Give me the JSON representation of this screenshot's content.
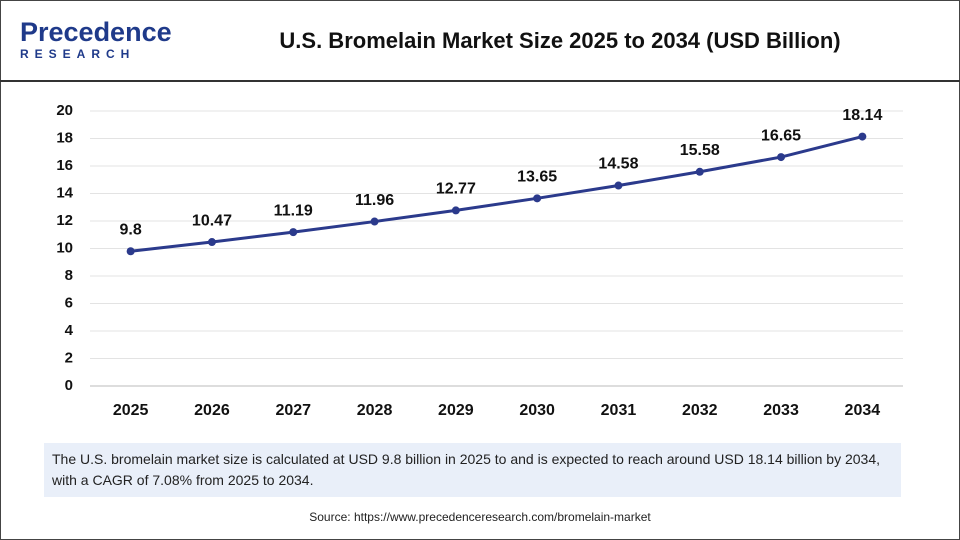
{
  "logo": {
    "name": "Precedence",
    "tagline": "RESEARCH"
  },
  "chart_data": {
    "type": "line",
    "title": "U.S. Bromelain Market Size 2025 to 2034 (USD Billion)",
    "categories": [
      "2025",
      "2026",
      "2027",
      "2028",
      "2029",
      "2030",
      "2031",
      "2032",
      "2033",
      "2034"
    ],
    "values": [
      9.8,
      10.47,
      11.19,
      11.96,
      12.77,
      13.65,
      14.58,
      15.58,
      16.65,
      18.14
    ],
    "color": "#2b3a8c",
    "ylim": [
      0,
      20
    ],
    "yticks": [
      0,
      2,
      4,
      6,
      8,
      10,
      12,
      14,
      16,
      18,
      20
    ],
    "grid": true
  },
  "description": "The U.S. bromelain market size is calculated at USD 9.8 billion in 2025 to and is expected to reach around USD 18.14 billion by 2034, with a CAGR of 7.08% from 2025 to 2034.",
  "source": "Source: https://www.precedenceresearch.com/bromelain-market"
}
